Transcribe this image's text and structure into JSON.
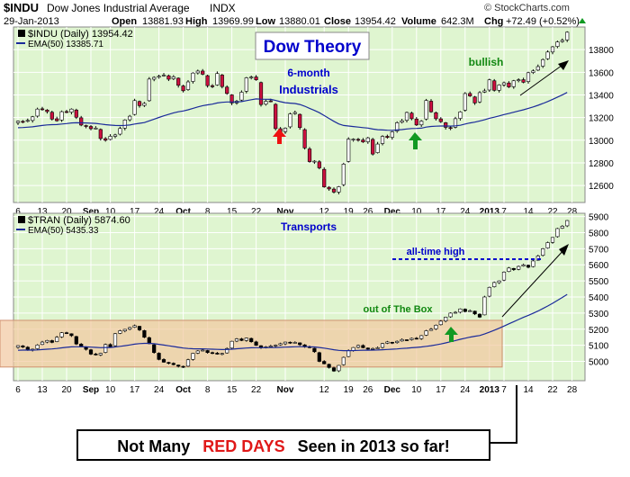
{
  "header": {
    "symbol": "$INDU",
    "name": "Dow Jones Industrial Average",
    "exchange": "INDX",
    "date": "29-Jan-2013",
    "open_label": "Open",
    "open": "13881.93",
    "high_label": "High",
    "high": "13969.99",
    "low_label": "Low",
    "low": "13880.01",
    "close_label": "Close",
    "close": "13954.42",
    "volume_label": "Volume",
    "volume": "642.3M",
    "chg_label": "Chg",
    "chg": "+72.49 (+0.52%)",
    "copyright": "© StockCharts.com"
  },
  "annotations": {
    "title": "Dow Theory",
    "industrials_label_1": "6-month",
    "industrials_label_2": "Industrials",
    "bullish": "bullish",
    "transports": "Transports",
    "all_time_high": "all-time high",
    "out_of_box": "out of The Box",
    "bottom_note": {
      "part1": "Not Many",
      "part2": "RED DAYS",
      "part3": "Seen in 2013 so far!"
    }
  },
  "colors": {
    "panel_bg": "#dff5d0",
    "grid": "#ffffff",
    "up_candle": "#ffffff",
    "down_candle": "#cc1040",
    "candle_outline": "#000000",
    "ema": "#1a2a9a",
    "title_color": "#0000cc",
    "bullish_color": "#118811",
    "red_text": "#e01818",
    "box_fill": "#f2c8a0",
    "arrow_red": "#ee1111",
    "arrow_green": "#119922"
  },
  "x_axis": {
    "ticks": [
      {
        "label": "6",
        "i": 0
      },
      {
        "label": "13",
        "i": 5
      },
      {
        "label": "20",
        "i": 10
      },
      {
        "label": "Sep",
        "i": 15,
        "bold": true
      },
      {
        "label": "10",
        "i": 19
      },
      {
        "label": "17",
        "i": 24
      },
      {
        "label": "24",
        "i": 29
      },
      {
        "label": "Oct",
        "i": 34,
        "bold": true
      },
      {
        "label": "8",
        "i": 39
      },
      {
        "label": "15",
        "i": 44
      },
      {
        "label": "22",
        "i": 49
      },
      {
        "label": "Nov",
        "i": 55,
        "bold": true
      },
      {
        "label": "12",
        "i": 63
      },
      {
        "label": "19",
        "i": 68
      },
      {
        "label": "26",
        "i": 72
      },
      {
        "label": "Dec",
        "i": 77,
        "bold": true
      },
      {
        "label": "10",
        "i": 82
      },
      {
        "label": "17",
        "i": 87
      },
      {
        "label": "24",
        "i": 92
      },
      {
        "label": "2013",
        "i": 97,
        "bold": true
      },
      {
        "label": "7",
        "i": 100
      },
      {
        "label": "14",
        "i": 105
      },
      {
        "label": "22",
        "i": 110
      },
      {
        "label": "28",
        "i": 114
      }
    ]
  },
  "chart_data": [
    {
      "type": "candlestick",
      "symbol_label": "$INDU (Daily) 13954.42",
      "ema_label": "EMA(50) 13385.71",
      "yticks": [
        12600,
        12800,
        13000,
        13200,
        13400,
        13600,
        13800
      ],
      "ylim": [
        12450,
        14000
      ],
      "close": [
        13168,
        13165,
        13175,
        13207,
        13275,
        13271,
        13253,
        13187,
        13172,
        13252,
        13250,
        13275,
        13203,
        13134,
        13124,
        13102,
        13107,
        13015,
        13000,
        13035,
        13047,
        13104,
        13179,
        13212,
        13350,
        13306,
        13325,
        13540,
        13555,
        13565,
        13575,
        13539,
        13560,
        13485,
        13437,
        13515,
        13593,
        13611,
        13583,
        13482,
        13473,
        13589,
        13474,
        13413,
        13329,
        13345,
        13424,
        13551,
        13558,
        13534,
        13315,
        13344,
        13343,
        13103,
        13077,
        13107,
        13232,
        13245,
        13112,
        12932,
        12811,
        12815,
        12756,
        12588,
        12570,
        12542,
        12589,
        12789,
        13010,
        13009,
        13001,
        12985,
        13021,
        12878,
        12966,
        13034,
        13025,
        13074,
        13155,
        13172,
        13245,
        13190,
        13135,
        13169,
        13351,
        13251,
        13190,
        13164,
        13114,
        13104,
        13190,
        13250,
        13412,
        13391,
        13329,
        13420,
        13436,
        13533,
        13441,
        13488,
        13507,
        13471,
        13525,
        13534,
        13512,
        13596,
        13612,
        13650,
        13712,
        13779,
        13825,
        13868,
        13882,
        13954
      ]
    },
    {
      "type": "candlestick",
      "symbol_label": "$TRAN (Daily) 5874.60",
      "ema_label": "EMA(50) 5435.33",
      "yticks": [
        5000,
        5100,
        5200,
        5300,
        5400,
        5500,
        5600,
        5700,
        5800,
        5900
      ],
      "ylim": [
        4880,
        5920
      ],
      "close": [
        5098,
        5089,
        5070,
        5076,
        5102,
        5120,
        5130,
        5118,
        5150,
        5178,
        5175,
        5160,
        5108,
        5094,
        5075,
        5045,
        5040,
        5050,
        5105,
        5090,
        5172,
        5190,
        5199,
        5210,
        5222,
        5196,
        5150,
        5110,
        5055,
        5012,
        4995,
        4988,
        4980,
        4970,
        4965,
        5010,
        5050,
        5065,
        5070,
        5055,
        5050,
        5045,
        5049,
        5080,
        5125,
        5140,
        5130,
        5145,
        5122,
        5100,
        5085,
        5090,
        5096,
        5101,
        5110,
        5120,
        5115,
        5118,
        5104,
        5090,
        5085,
        5060,
        5000,
        4985,
        4962,
        4940,
        4975,
        5025,
        5068,
        5086,
        5099,
        5085,
        5076,
        5080,
        5085,
        5111,
        5121,
        5116,
        5125,
        5136,
        5134,
        5143,
        5140,
        5160,
        5190,
        5200,
        5225,
        5250,
        5275,
        5300,
        5305,
        5326,
        5310,
        5315,
        5295,
        5275,
        5400,
        5460,
        5490,
        5500,
        5555,
        5580,
        5570,
        5590,
        5600,
        5585,
        5624,
        5655,
        5700,
        5738,
        5770,
        5825,
        5840,
        5875
      ]
    }
  ]
}
